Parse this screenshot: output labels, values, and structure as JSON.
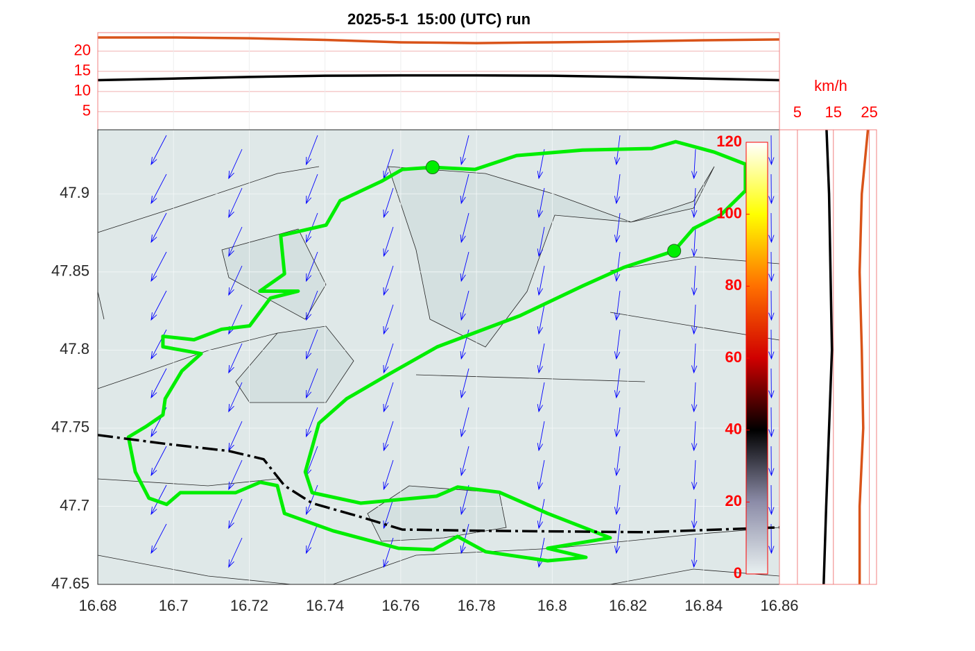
{
  "chart_data": [
    {
      "type": "line",
      "title": "2025-5-1  15:00 (UTC) run",
      "x": [
        16.68,
        16.7,
        16.72,
        16.74,
        16.76,
        16.78,
        16.8,
        16.82,
        16.84,
        16.86
      ],
      "series": [
        {
          "color": "#d95319",
          "values": [
            23.4,
            23.4,
            23.2,
            22.8,
            22.2,
            22.0,
            22.2,
            22.4,
            22.7,
            22.9
          ]
        },
        {
          "color": "#000000",
          "values": [
            12.8,
            13.2,
            13.6,
            13.9,
            14.0,
            14.0,
            13.9,
            13.6,
            13.2,
            12.8
          ]
        }
      ],
      "xlim": [
        16.68,
        16.86
      ],
      "ylim": [
        0.5,
        24.6
      ],
      "yticks": [
        5,
        10,
        15,
        20
      ],
      "grid": true,
      "tick_color": "#ff0000"
    },
    {
      "type": "map",
      "xlim": [
        16.68,
        16.86
      ],
      "ylim": [
        47.65,
        47.941
      ],
      "xticks": [
        16.68,
        16.7,
        16.72,
        16.74,
        16.76,
        16.78,
        16.8,
        16.82,
        16.84,
        16.86
      ],
      "yticks": [
        47.65,
        47.7,
        47.75,
        47.8,
        47.85,
        47.9
      ],
      "grid": true,
      "fill": "#dfe8e8",
      "vector_color": "#0000ff",
      "series": [
        {
          "color": "#00ee00",
          "dashed": false,
          "x": [
            16.7684,
            16.7796,
            16.7906,
            16.808,
            16.8263,
            16.8326,
            16.8428,
            16.851,
            16.851,
            16.8446,
            16.8373,
            16.8322,
            16.819,
            16.808,
            16.7915,
            16.7696,
            16.7567,
            16.7457,
            16.7384,
            16.7348,
            16.7366,
            16.7494,
            16.7695,
            16.775,
            16.786,
            16.7988,
            16.8153,
            16.7988,
            16.8089,
            16.7988,
            16.7824,
            16.775,
            16.7686,
            16.7594,
            16.7421,
            16.7293,
            16.7274,
            16.7229,
            16.7164,
            16.7018,
            16.6982,
            16.6935,
            16.6899,
            16.6881,
            16.6927,
            16.6972,
            16.6978,
            16.7022,
            16.7073,
            16.6972,
            16.6972,
            16.7054,
            16.7127,
            16.7201,
            16.7256,
            16.7329,
            16.7228,
            16.7293,
            16.7283,
            16.7403,
            16.744,
            16.7549,
            16.7604,
            16.7684
          ],
          "values": [
            47.917,
            47.9156,
            47.9245,
            47.928,
            47.929,
            47.9334,
            47.9267,
            47.919,
            47.902,
            47.8867,
            47.8778,
            47.8635,
            47.853,
            47.841,
            47.822,
            47.802,
            47.7843,
            47.7688,
            47.7532,
            47.722,
            47.7087,
            47.702,
            47.7065,
            47.7123,
            47.709,
            47.6954,
            47.6798,
            47.6731,
            47.6673,
            47.6651,
            47.6709,
            47.6807,
            47.6722,
            47.6731,
            47.6843,
            47.6954,
            47.7132,
            47.7154,
            47.7087,
            47.7087,
            47.7012,
            47.7052,
            47.7221,
            47.7443,
            47.751,
            47.7585,
            47.7688,
            47.7866,
            47.7977,
            47.8021,
            47.8088,
            47.8066,
            47.8133,
            47.8155,
            47.8333,
            47.8377,
            47.8377,
            47.8488,
            47.8733,
            47.88,
            47.8956,
            47.908,
            47.9156,
            47.917
          ]
        },
        {
          "color": "#000000",
          "dashed": true,
          "x": [
            16.68,
            16.6981,
            16.7146,
            16.7238,
            16.7293,
            16.7366,
            16.7494,
            16.7604,
            16.7824,
            16.8245,
            16.86
          ],
          "values": [
            47.7456,
            47.7399,
            47.7354,
            47.7301,
            47.7132,
            47.702,
            47.6932,
            47.6851,
            47.6843,
            47.6834,
            47.6865
          ]
        }
      ],
      "markers": {
        "color": "#00ee00",
        "x": [
          16.7684,
          16.8322
        ],
        "values": [
          47.917,
          47.8635
        ]
      }
    },
    {
      "type": "colorbar",
      "ylim": [
        0,
        120
      ],
      "yticks": [
        0,
        20,
        40,
        60,
        80,
        100,
        120
      ],
      "tick_color": "#ff0000",
      "colormap": [
        "#e8f0f0",
        "#8c8ca8",
        "#000000",
        "#d00000",
        "#ff7000",
        "#ffff00",
        "#ffffff"
      ]
    },
    {
      "type": "profile",
      "xlabel": "km/h",
      "xlim": [
        0,
        27
      ],
      "xticks": [
        5,
        15,
        25
      ],
      "grid": true,
      "tick_color": "#ff0000",
      "y": [
        47.65,
        47.7,
        47.75,
        47.8,
        47.85,
        47.9,
        47.941
      ],
      "series": [
        {
          "color": "#000000",
          "values": [
            12.3,
            13.0,
            13.8,
            14.6,
            14.2,
            13.8,
            13.1
          ]
        },
        {
          "color": "#d95319",
          "values": [
            22.3,
            22.3,
            23.3,
            22.9,
            22.3,
            22.9,
            24.6
          ]
        }
      ]
    }
  ]
}
